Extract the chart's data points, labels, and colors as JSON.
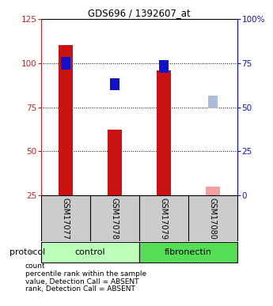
{
  "title": "GDS696 / 1392607_at",
  "samples": [
    "GSM17077",
    "GSM17078",
    "GSM17079",
    "GSM17080"
  ],
  "count_values": [
    110,
    62,
    96,
    30
  ],
  "rank_values": [
    75,
    63,
    73,
    53
  ],
  "absent_flags": [
    false,
    false,
    false,
    true
  ],
  "bar_color_present": "#cc1111",
  "bar_color_absent": "#f2a0a0",
  "rank_color_present": "#1111cc",
  "rank_color_absent": "#aabbdd",
  "ylim_left": [
    25,
    125
  ],
  "ylim_right": [
    0,
    100
  ],
  "yticks_left": [
    25,
    50,
    75,
    100,
    125
  ],
  "yticks_right": [
    0,
    25,
    50,
    75,
    100
  ],
  "ytick_labels_right": [
    "0",
    "25",
    "50",
    "75",
    "100%"
  ],
  "groups": [
    {
      "label": "control",
      "samples": [
        0,
        1
      ],
      "color": "#bbffbb"
    },
    {
      "label": "fibronectin",
      "samples": [
        2,
        3
      ],
      "color": "#55dd55"
    }
  ],
  "protocol_label": "protocol",
  "bar_width": 0.28,
  "bg_color": "#ffffff",
  "sample_area_color": "#cccccc",
  "legend_items": [
    {
      "color": "#cc1111",
      "label": "count"
    },
    {
      "color": "#1111cc",
      "label": "percentile rank within the sample"
    },
    {
      "color": "#f2a0a0",
      "label": "value, Detection Call = ABSENT"
    },
    {
      "color": "#aabbdd",
      "label": "rank, Detection Call = ABSENT"
    }
  ]
}
